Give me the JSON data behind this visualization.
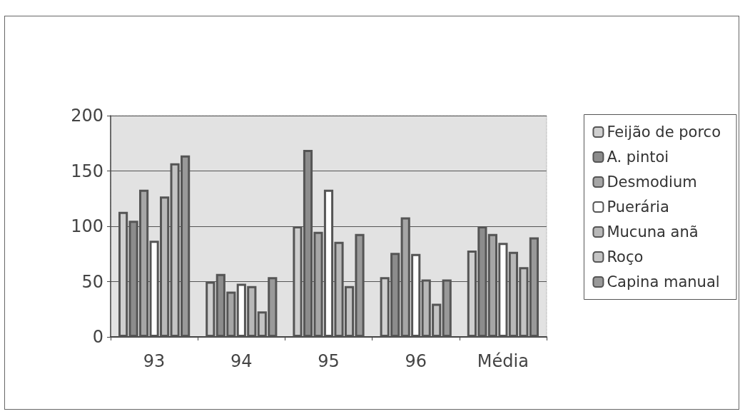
{
  "chart_data": {
    "type": "bar",
    "categories": [
      "93",
      "94",
      "95",
      "96",
      "Média"
    ],
    "series": [
      {
        "name": "Feijão de porco",
        "color": "#cfcfcf",
        "values": [
          113,
          50,
          100,
          54,
          78
        ]
      },
      {
        "name": "A. pintoi",
        "color": "#8c8c8c",
        "values": [
          105,
          57,
          169,
          76,
          100
        ]
      },
      {
        "name": "Desmodium",
        "color": "#a6a6a6",
        "values": [
          133,
          41,
          95,
          108,
          93
        ]
      },
      {
        "name": "Puerária",
        "color": "#ffffff",
        "values": [
          87,
          48,
          133,
          75,
          85
        ]
      },
      {
        "name": "Mucuna anã",
        "color": "#b8b8b8",
        "values": [
          127,
          46,
          86,
          52,
          77
        ]
      },
      {
        "name": "Roço",
        "color": "#c4c4c4",
        "values": [
          157,
          23,
          46,
          30,
          63
        ]
      },
      {
        "name": "Capina manual",
        "color": "#999999",
        "values": [
          164,
          54,
          93,
          52,
          90
        ]
      }
    ],
    "ylim": [
      0,
      200
    ],
    "yticks": [
      0,
      50,
      100,
      150,
      200
    ],
    "grid": "y",
    "legend": "right"
  }
}
